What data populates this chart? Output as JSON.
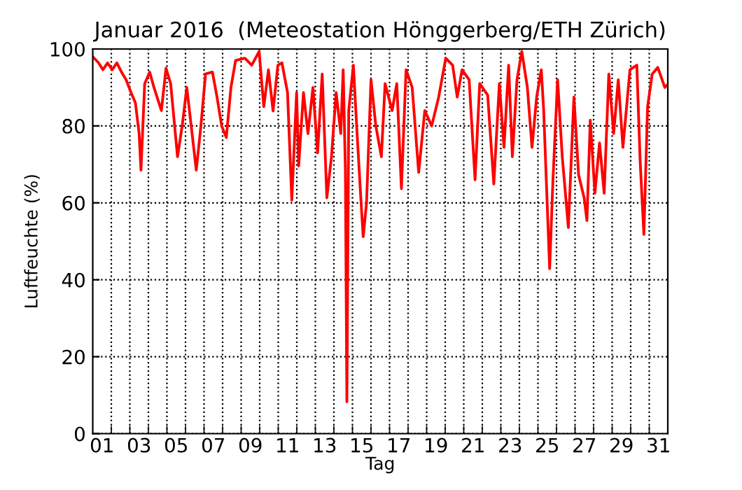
{
  "chart_data": {
    "type": "line",
    "title": "Januar 2016  (Meteostation Hönggerberg/ETH Zürich)",
    "xlabel": "Tag",
    "ylabel": "Luftfeuchte (%)",
    "xlim": [
      1,
      32
    ],
    "ylim": [
      0,
      100
    ],
    "yticks": [
      0,
      20,
      40,
      60,
      80,
      100
    ],
    "xticks": [
      {
        "value": 1.5,
        "label": "01"
      },
      {
        "value": 3.5,
        "label": "03"
      },
      {
        "value": 5.5,
        "label": "05"
      },
      {
        "value": 7.5,
        "label": "07"
      },
      {
        "value": 9.5,
        "label": "09"
      },
      {
        "value": 11.5,
        "label": "11"
      },
      {
        "value": 13.5,
        "label": "13"
      },
      {
        "value": 15.5,
        "label": "15"
      },
      {
        "value": 17.5,
        "label": "17"
      },
      {
        "value": 19.5,
        "label": "19"
      },
      {
        "value": 21.5,
        "label": "21"
      },
      {
        "value": 23.5,
        "label": "23"
      },
      {
        "value": 25.5,
        "label": "25"
      },
      {
        "value": 27.5,
        "label": "27"
      },
      {
        "value": 29.5,
        "label": "29"
      },
      {
        "value": 31.5,
        "label": "31"
      },
      {
        "value": 2,
        "label": null
      },
      {
        "value": 3,
        "label": null
      },
      {
        "value": 4,
        "label": null
      },
      {
        "value": 5,
        "label": null
      },
      {
        "value": 6,
        "label": null
      },
      {
        "value": 7,
        "label": null
      },
      {
        "value": 8,
        "label": null
      },
      {
        "value": 9,
        "label": null
      },
      {
        "value": 10,
        "label": null
      },
      {
        "value": 11,
        "label": null
      },
      {
        "value": 12,
        "label": null
      },
      {
        "value": 13,
        "label": null
      },
      {
        "value": 14,
        "label": null
      },
      {
        "value": 15,
        "label": null
      },
      {
        "value": 16,
        "label": null
      },
      {
        "value": 17,
        "label": null
      },
      {
        "value": 18,
        "label": null
      },
      {
        "value": 19,
        "label": null
      },
      {
        "value": 20,
        "label": null
      },
      {
        "value": 21,
        "label": null
      },
      {
        "value": 22,
        "label": null
      },
      {
        "value": 23,
        "label": null
      },
      {
        "value": 24,
        "label": null
      },
      {
        "value": 25,
        "label": null
      },
      {
        "value": 26,
        "label": null
      },
      {
        "value": 27,
        "label": null
      },
      {
        "value": 28,
        "label": null
      },
      {
        "value": 29,
        "label": null
      },
      {
        "value": 30,
        "label": null
      },
      {
        "value": 31,
        "label": null
      }
    ],
    "grid": true,
    "line_style": "solid",
    "series": [
      {
        "color": "#ff0000",
        "x": [
          1.0,
          1.3,
          1.55,
          1.8,
          2.05,
          2.3,
          2.55,
          2.8,
          3.06,
          3.3,
          3.5,
          3.6,
          3.8,
          4.07,
          4.3,
          4.7,
          4.95,
          5.2,
          5.57,
          5.82,
          6.07,
          6.58,
          6.83,
          7.08,
          7.45,
          7.7,
          7.95,
          8.2,
          8.45,
          8.7,
          9.2,
          9.57,
          9.97,
          10.22,
          10.47,
          10.72,
          10.98,
          11.2,
          11.5,
          11.73,
          11.99,
          12.1,
          12.36,
          12.6,
          12.87,
          13.12,
          13.37,
          13.62,
          13.87,
          14.12,
          14.37,
          14.5,
          14.62,
          14.7,
          14.8,
          15.05,
          15.25,
          15.45,
          15.58,
          15.76,
          16.0,
          16.26,
          16.56,
          16.76,
          17.14,
          17.39,
          17.64,
          17.89,
          18.22,
          18.57,
          18.9,
          19.27,
          19.65,
          20.03,
          20.4,
          20.65,
          20.91,
          21.29,
          21.61,
          21.86,
          22.29,
          22.62,
          22.92,
          23.17,
          23.42,
          23.62,
          23.87,
          24.13,
          24.43,
          24.68,
          24.93,
          25.18,
          25.31,
          25.43,
          25.63,
          25.81,
          26.06,
          26.31,
          26.64,
          26.94,
          27.19,
          27.49,
          27.64,
          27.82,
          28.07,
          28.32,
          28.57,
          28.82,
          29.08,
          29.33,
          29.58,
          29.96,
          30.33,
          30.51,
          30.71,
          30.91,
          31.16,
          31.46,
          31.84,
          31.96
        ],
        "values": [
          98,
          96.5,
          94.6,
          96.4,
          94.6,
          96.4,
          94,
          92,
          88.7,
          86,
          78,
          68.5,
          91,
          94,
          90,
          84,
          95,
          91,
          72,
          80,
          90,
          68.5,
          80,
          93.5,
          94,
          87.5,
          80,
          77,
          90,
          97,
          97.6,
          95.8,
          99.4,
          85,
          94.6,
          83.9,
          95.8,
          96.4,
          88.7,
          60.7,
          88.7,
          69.6,
          88.7,
          78,
          90,
          73,
          93.5,
          61.3,
          72,
          88.7,
          78,
          94.6,
          68.5,
          8.3,
          84,
          95.8,
          78,
          61.3,
          51.2,
          60,
          92,
          80,
          72,
          91,
          84,
          91,
          63.7,
          94.6,
          90,
          67.9,
          84,
          80,
          87.5,
          97.6,
          95.8,
          87.5,
          94.6,
          92,
          66,
          91,
          88,
          64.9,
          91,
          74.4,
          95.8,
          72,
          92,
          99.4,
          90,
          74.4,
          87.5,
          94.6,
          84,
          68.5,
          42.9,
          66,
          92,
          72,
          53.6,
          87.5,
          67.3,
          61.3,
          55.4,
          81.5,
          62.5,
          75.6,
          62.5,
          93.5,
          78,
          92,
          74.4,
          94.6,
          95.8,
          70.8,
          51.8,
          85,
          93.5,
          95.2,
          90,
          90.6
        ]
      }
    ]
  }
}
